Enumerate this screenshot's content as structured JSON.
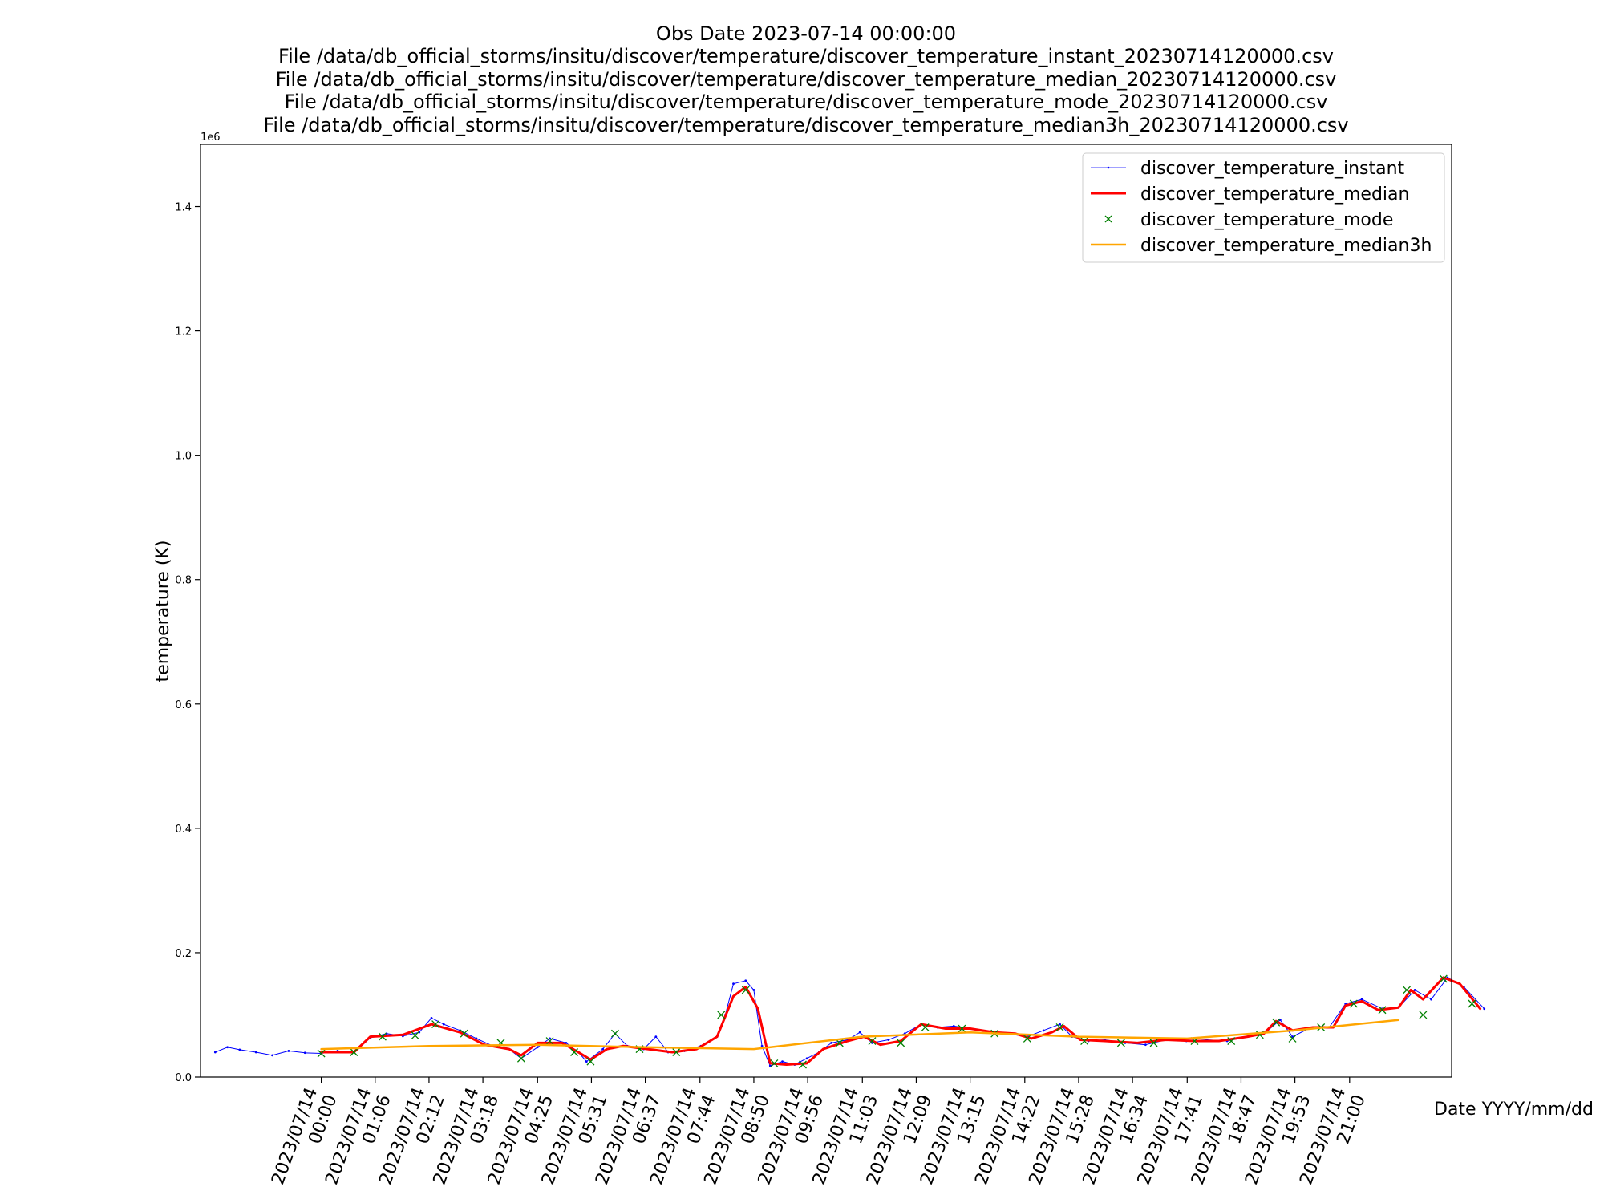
{
  "chart_data": {
    "type": "line",
    "title_lines": [
      "Obs Date 2023-07-14 00:00:00",
      "File /data/db_official_storms/insitu/discover/temperature/discover_temperature_instant_20230714120000.csv",
      "File /data/db_official_storms/insitu/discover/temperature/discover_temperature_median_20230714120000.csv",
      "File /data/db_official_storms/insitu/discover/temperature/discover_temperature_mode_20230714120000.csv",
      "File /data/db_official_storms/insitu/discover/temperature/discover_temperature_median3h_20230714120000.csv"
    ],
    "xlabel": "Date YYYY/mm/dd",
    "ylabel": "temperature (K)",
    "y_offset_label": "1e6",
    "ylim": [
      0,
      1500000
    ],
    "xlim": [
      "2023/07/13 21:32",
      "2023/07/14 23:05"
    ],
    "yticks": [
      {
        "value": 0,
        "label": "0.0"
      },
      {
        "value": 200000,
        "label": "0.2"
      },
      {
        "value": 400000,
        "label": "0.4"
      },
      {
        "value": 600000,
        "label": "0.6"
      },
      {
        "value": 800000,
        "label": "0.8"
      },
      {
        "value": 1000000,
        "label": "1.0"
      },
      {
        "value": 1200000,
        "label": "1.2"
      },
      {
        "value": 1400000,
        "label": "1.4"
      }
    ],
    "xticks": [
      {
        "time": "00:00",
        "label_date": "2023/07/14",
        "label_time": "00:00"
      },
      {
        "time": "01:06",
        "label_date": "2023/07/14",
        "label_time": "01:06"
      },
      {
        "time": "02:12",
        "label_date": "2023/07/14",
        "label_time": "02:12"
      },
      {
        "time": "03:18",
        "label_date": "2023/07/14",
        "label_time": "03:18"
      },
      {
        "time": "04:25",
        "label_date": "2023/07/14",
        "label_time": "04:25"
      },
      {
        "time": "05:31",
        "label_date": "2023/07/14",
        "label_time": "05:31"
      },
      {
        "time": "06:37",
        "label_date": "2023/07/14",
        "label_time": "06:37"
      },
      {
        "time": "07:44",
        "label_date": "2023/07/14",
        "label_time": "07:44"
      },
      {
        "time": "08:50",
        "label_date": "2023/07/14",
        "label_time": "08:50"
      },
      {
        "time": "09:56",
        "label_date": "2023/07/14",
        "label_time": "09:56"
      },
      {
        "time": "11:03",
        "label_date": "2023/07/14",
        "label_time": "11:03"
      },
      {
        "time": "12:09",
        "label_date": "2023/07/14",
        "label_time": "12:09"
      },
      {
        "time": "13:15",
        "label_date": "2023/07/14",
        "label_time": "13:15"
      },
      {
        "time": "14:22",
        "label_date": "2023/07/14",
        "label_time": "14:22"
      },
      {
        "time": "15:28",
        "label_date": "2023/07/14",
        "label_time": "15:28"
      },
      {
        "time": "16:34",
        "label_date": "2023/07/14",
        "label_time": "16:34"
      },
      {
        "time": "17:41",
        "label_date": "2023/07/14",
        "label_time": "17:41"
      },
      {
        "time": "18:47",
        "label_date": "2023/07/14",
        "label_time": "18:47"
      },
      {
        "time": "19:53",
        "label_date": "2023/07/14",
        "label_time": "19:53"
      },
      {
        "time": "21:00",
        "label_date": "2023/07/14",
        "label_time": "21:00"
      }
    ],
    "legend_position": "top-right",
    "grid": false,
    "series": [
      {
        "name": "discover_temperature_instant",
        "style": "thin-line-dots",
        "color": "#0000ff",
        "points": [
          [
            "2023/07/13 21:50",
            40000
          ],
          [
            "2023/07/13 22:05",
            48000
          ],
          [
            "2023/07/13 22:20",
            44000
          ],
          [
            "2023/07/13 22:40",
            40000
          ],
          [
            "2023/07/13 23:00",
            35000
          ],
          [
            "2023/07/13 23:20",
            42000
          ],
          [
            "2023/07/13 23:40",
            39000
          ],
          [
            "2023/07/14 00:00",
            38000
          ],
          [
            "2023/07/14 00:20",
            42000
          ],
          [
            "2023/07/14 00:40",
            40000
          ],
          [
            "2023/07/14 01:00",
            63000
          ],
          [
            "2023/07/14 01:20",
            70000
          ],
          [
            "2023/07/14 01:40",
            66000
          ],
          [
            "2023/07/14 02:00",
            72000
          ],
          [
            "2023/07/14 02:15",
            95000
          ],
          [
            "2023/07/14 02:30",
            85000
          ],
          [
            "2023/07/14 02:50",
            75000
          ],
          [
            "2023/07/14 03:10",
            62000
          ],
          [
            "2023/07/14 03:30",
            50000
          ],
          [
            "2023/07/14 03:50",
            45000
          ],
          [
            "2023/07/14 04:05",
            30000
          ],
          [
            "2023/07/14 04:25",
            48000
          ],
          [
            "2023/07/14 04:40",
            62000
          ],
          [
            "2023/07/14 05:00",
            55000
          ],
          [
            "2023/07/14 05:15",
            40000
          ],
          [
            "2023/07/14 05:25",
            25000
          ],
          [
            "2023/07/14 05:45",
            45000
          ],
          [
            "2023/07/14 06:00",
            70000
          ],
          [
            "2023/07/14 06:15",
            50000
          ],
          [
            "2023/07/14 06:35",
            45000
          ],
          [
            "2023/07/14 06:50",
            65000
          ],
          [
            "2023/07/14 07:05",
            40000
          ],
          [
            "2023/07/14 07:25",
            42000
          ],
          [
            "2023/07/14 07:45",
            50000
          ],
          [
            "2023/07/14 08:05",
            65000
          ],
          [
            "2023/07/14 08:15",
            100000
          ],
          [
            "2023/07/14 08:25",
            150000
          ],
          [
            "2023/07/14 08:40",
            155000
          ],
          [
            "2023/07/14 08:50",
            140000
          ],
          [
            "2023/07/14 09:00",
            50000
          ],
          [
            "2023/07/14 09:10",
            18000
          ],
          [
            "2023/07/14 09:25",
            25000
          ],
          [
            "2023/07/14 09:40",
            20000
          ],
          [
            "2023/07/14 09:55",
            30000
          ],
          [
            "2023/07/14 10:10",
            40000
          ],
          [
            "2023/07/14 10:25",
            55000
          ],
          [
            "2023/07/14 10:45",
            60000
          ],
          [
            "2023/07/14 11:00",
            72000
          ],
          [
            "2023/07/14 11:15",
            55000
          ],
          [
            "2023/07/14 11:35",
            60000
          ],
          [
            "2023/07/14 11:55",
            70000
          ],
          [
            "2023/07/14 12:15",
            85000
          ],
          [
            "2023/07/14 12:35",
            80000
          ],
          [
            "2023/07/14 12:55",
            82000
          ],
          [
            "2023/07/14 13:15",
            78000
          ],
          [
            "2023/07/14 13:40",
            72000
          ],
          [
            "2023/07/14 14:00",
            70000
          ],
          [
            "2023/07/14 14:25",
            65000
          ],
          [
            "2023/07/14 14:45",
            75000
          ],
          [
            "2023/07/14 15:05",
            85000
          ],
          [
            "2023/07/14 15:20",
            65000
          ],
          [
            "2023/07/14 15:40",
            58000
          ],
          [
            "2023/07/14 16:00",
            60000
          ],
          [
            "2023/07/14 16:25",
            55000
          ],
          [
            "2023/07/14 16:50",
            52000
          ],
          [
            "2023/07/14 17:15",
            60000
          ],
          [
            "2023/07/14 17:40",
            58000
          ],
          [
            "2023/07/14 18:05",
            60000
          ],
          [
            "2023/07/14 18:30",
            58000
          ],
          [
            "2023/07/14 18:55",
            65000
          ],
          [
            "2023/07/14 19:20",
            75000
          ],
          [
            "2023/07/14 19:35",
            92000
          ],
          [
            "2023/07/14 19:50",
            65000
          ],
          [
            "2023/07/14 20:10",
            78000
          ],
          [
            "2023/07/14 20:35",
            80000
          ],
          [
            "2023/07/14 20:55",
            118000
          ],
          [
            "2023/07/14 21:15",
            125000
          ],
          [
            "2023/07/14 21:40",
            110000
          ],
          [
            "2023/07/14 22:00",
            112000
          ],
          [
            "2023/07/14 22:20",
            140000
          ],
          [
            "2023/07/14 22:40",
            125000
          ],
          [
            "2023/07/14 23:00",
            160000
          ],
          [
            "2023/07/14 23:20",
            145000
          ],
          [
            "2023/07/14 23:45",
            110000
          ]
        ]
      },
      {
        "name": "discover_temperature_median",
        "style": "thick-line",
        "color": "#ff0000",
        "points": [
          [
            "2023/07/14 00:00",
            40000
          ],
          [
            "2023/07/14 00:40",
            40000
          ],
          [
            "2023/07/14 01:00",
            65000
          ],
          [
            "2023/07/14 01:40",
            68000
          ],
          [
            "2023/07/14 02:15",
            85000
          ],
          [
            "2023/07/14 02:50",
            72000
          ],
          [
            "2023/07/14 03:20",
            52000
          ],
          [
            "2023/07/14 03:50",
            45000
          ],
          [
            "2023/07/14 04:05",
            35000
          ],
          [
            "2023/07/14 04:25",
            55000
          ],
          [
            "2023/07/14 04:55",
            55000
          ],
          [
            "2023/07/14 05:15",
            40000
          ],
          [
            "2023/07/14 05:30",
            28000
          ],
          [
            "2023/07/14 05:50",
            45000
          ],
          [
            "2023/07/14 06:10",
            50000
          ],
          [
            "2023/07/14 06:40",
            45000
          ],
          [
            "2023/07/14 07:10",
            40000
          ],
          [
            "2023/07/14 07:40",
            45000
          ],
          [
            "2023/07/14 08:05",
            65000
          ],
          [
            "2023/07/14 08:25",
            130000
          ],
          [
            "2023/07/14 08:40",
            145000
          ],
          [
            "2023/07/14 08:55",
            110000
          ],
          [
            "2023/07/14 09:10",
            22000
          ],
          [
            "2023/07/14 09:30",
            20000
          ],
          [
            "2023/07/14 09:55",
            22000
          ],
          [
            "2023/07/14 10:15",
            45000
          ],
          [
            "2023/07/14 10:45",
            58000
          ],
          [
            "2023/07/14 11:05",
            65000
          ],
          [
            "2023/07/14 11:25",
            52000
          ],
          [
            "2023/07/14 11:50",
            58000
          ],
          [
            "2023/07/14 12:15",
            85000
          ],
          [
            "2023/07/14 12:45",
            78000
          ],
          [
            "2023/07/14 13:15",
            78000
          ],
          [
            "2023/07/14 13:45",
            72000
          ],
          [
            "2023/07/14 14:10",
            70000
          ],
          [
            "2023/07/14 14:30",
            62000
          ],
          [
            "2023/07/14 14:55",
            72000
          ],
          [
            "2023/07/14 15:10",
            82000
          ],
          [
            "2023/07/14 15:30",
            60000
          ],
          [
            "2023/07/14 16:00",
            58000
          ],
          [
            "2023/07/14 16:40",
            55000
          ],
          [
            "2023/07/14 17:15",
            60000
          ],
          [
            "2023/07/14 17:50",
            58000
          ],
          [
            "2023/07/14 18:20",
            58000
          ],
          [
            "2023/07/14 18:55",
            65000
          ],
          [
            "2023/07/14 19:15",
            70000
          ],
          [
            "2023/07/14 19:30",
            90000
          ],
          [
            "2023/07/14 19:50",
            75000
          ],
          [
            "2023/07/14 20:15",
            80000
          ],
          [
            "2023/07/14 20:40",
            80000
          ],
          [
            "2023/07/14 20:55",
            115000
          ],
          [
            "2023/07/14 21:15",
            122000
          ],
          [
            "2023/07/14 21:35",
            108000
          ],
          [
            "2023/07/14 22:00",
            112000
          ],
          [
            "2023/07/14 22:15",
            140000
          ],
          [
            "2023/07/14 22:30",
            125000
          ],
          [
            "2023/07/14 22:55",
            160000
          ],
          [
            "2023/07/14 23:15",
            150000
          ],
          [
            "2023/07/14 23:40",
            110000
          ]
        ]
      },
      {
        "name": "discover_temperature_mode",
        "style": "x-markers",
        "color": "#008000",
        "points": [
          [
            "2023/07/14 00:00",
            38000
          ],
          [
            "2023/07/14 00:40",
            40000
          ],
          [
            "2023/07/14 01:15",
            65000
          ],
          [
            "2023/07/14 01:55",
            67000
          ],
          [
            "2023/07/14 02:20",
            85000
          ],
          [
            "2023/07/14 02:55",
            70000
          ],
          [
            "2023/07/14 03:40",
            55000
          ],
          [
            "2023/07/14 04:05",
            30000
          ],
          [
            "2023/07/14 04:40",
            58000
          ],
          [
            "2023/07/14 05:10",
            40000
          ],
          [
            "2023/07/14 05:30",
            25000
          ],
          [
            "2023/07/14 06:00",
            70000
          ],
          [
            "2023/07/14 06:30",
            45000
          ],
          [
            "2023/07/14 07:15",
            40000
          ],
          [
            "2023/07/14 08:10",
            100000
          ],
          [
            "2023/07/14 08:40",
            140000
          ],
          [
            "2023/07/14 09:15",
            22000
          ],
          [
            "2023/07/14 09:50",
            20000
          ],
          [
            "2023/07/14 10:35",
            55000
          ],
          [
            "2023/07/14 11:15",
            58000
          ],
          [
            "2023/07/14 11:50",
            55000
          ],
          [
            "2023/07/14 12:20",
            80000
          ],
          [
            "2023/07/14 13:05",
            78000
          ],
          [
            "2023/07/14 13:45",
            70000
          ],
          [
            "2023/07/14 14:25",
            62000
          ],
          [
            "2023/07/14 15:05",
            80000
          ],
          [
            "2023/07/14 15:35",
            58000
          ],
          [
            "2023/07/14 16:20",
            55000
          ],
          [
            "2023/07/14 17:00",
            55000
          ],
          [
            "2023/07/14 17:50",
            58000
          ],
          [
            "2023/07/14 18:35",
            58000
          ],
          [
            "2023/07/14 19:10",
            68000
          ],
          [
            "2023/07/14 19:30",
            88000
          ],
          [
            "2023/07/14 19:50",
            62000
          ],
          [
            "2023/07/14 20:25",
            80000
          ],
          [
            "2023/07/14 21:05",
            118000
          ],
          [
            "2023/07/14 21:40",
            108000
          ],
          [
            "2023/07/14 22:10",
            140000
          ],
          [
            "2023/07/14 22:30",
            100000
          ],
          [
            "2023/07/14 22:55",
            158000
          ],
          [
            "2023/07/14 23:30",
            118000
          ]
        ]
      },
      {
        "name": "discover_temperature_median3h",
        "style": "line",
        "color": "#ffa500",
        "points": [
          [
            "2023/07/14 00:00",
            45000
          ],
          [
            "2023/07/14 02:12",
            50000
          ],
          [
            "2023/07/14 04:25",
            52000
          ],
          [
            "2023/07/14 06:37",
            48000
          ],
          [
            "2023/07/14 08:50",
            45000
          ],
          [
            "2023/07/14 11:03",
            65000
          ],
          [
            "2023/07/14 13:15",
            72000
          ],
          [
            "2023/07/14 15:28",
            65000
          ],
          [
            "2023/07/14 17:41",
            62000
          ],
          [
            "2023/07/14 19:53",
            75000
          ],
          [
            "2023/07/14 22:00",
            92000
          ]
        ]
      }
    ]
  },
  "colors": {
    "instant": "#0000ff",
    "median": "#ff0000",
    "mode": "#008000",
    "median3h": "#ffa500",
    "legend_border": "#cccccc"
  }
}
